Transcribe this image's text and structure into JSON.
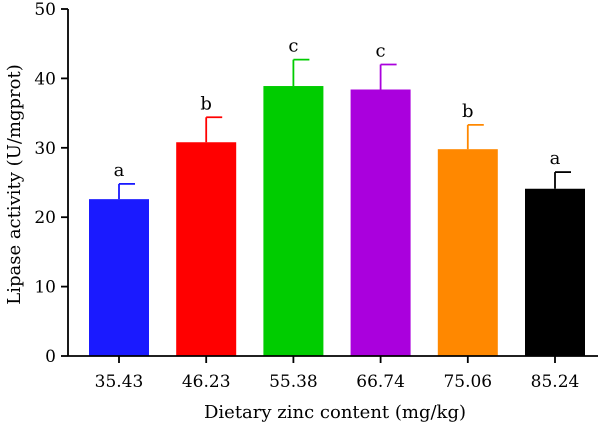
{
  "chart_data": {
    "type": "bar",
    "title": "",
    "xlabel": "Dietary zinc content (mg/kg)",
    "ylabel": "Lipase activity (U/mgprot)",
    "ylim": [
      0,
      50
    ],
    "yticks": [
      "0",
      "10",
      "20",
      "30",
      "40",
      "50"
    ],
    "categories": [
      "35.43",
      "46.23",
      "55.38",
      "66.74",
      "75.06",
      "85.24"
    ],
    "values": [
      22.6,
      30.8,
      38.9,
      38.4,
      29.8,
      24.1
    ],
    "errors": [
      2.2,
      3.6,
      3.8,
      3.6,
      3.5,
      2.4
    ],
    "significance": [
      "a",
      "b",
      "c",
      "c",
      "b",
      "a"
    ],
    "colors": [
      "#1a1aff",
      "#ff0000",
      "#00cc00",
      "#aa00dd",
      "#ff8800",
      "#000000"
    ],
    "grid": false,
    "legend": "none"
  }
}
